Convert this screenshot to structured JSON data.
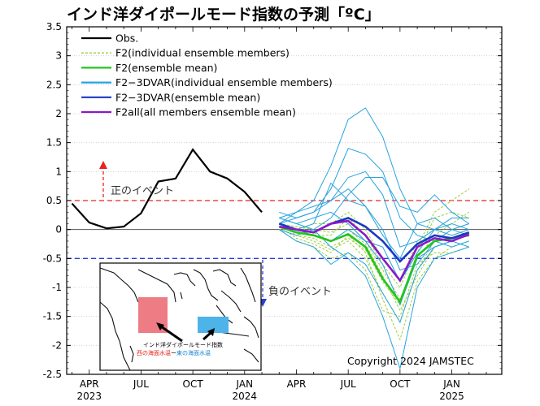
{
  "chart_data": {
    "type": "line",
    "title": "インド洋ダイポールモード指数の予測「ºC」",
    "ylim": [
      -2.5,
      3.5
    ],
    "y_ticks": [
      "3.5",
      "3",
      "2.5",
      "2",
      "1.5",
      "1",
      "0.5",
      "0",
      "-0.5",
      "-1",
      "-1.5",
      "-2",
      "-2.5"
    ],
    "x_ticks": [
      {
        "label": "APR",
        "year": "2023"
      },
      {
        "label": "JUL",
        "year": ""
      },
      {
        "label": "OCT",
        "year": ""
      },
      {
        "label": "JAN",
        "year": "2024"
      },
      {
        "label": "APR",
        "year": ""
      },
      {
        "label": "JUL",
        "year": ""
      },
      {
        "label": "OCT",
        "year": ""
      },
      {
        "label": "JAN",
        "year": "2025"
      }
    ],
    "thresholds": [
      {
        "value": 0.5,
        "label": "正のイベント",
        "color": "#e8241c"
      },
      {
        "value": -0.5,
        "label": "負のイベント",
        "color": "#2a3fd4"
      }
    ],
    "legend": [
      {
        "name": "Obs.",
        "color": "#000000",
        "style": "solid"
      },
      {
        "name": "F2(individual ensemble members)",
        "color": "#9ccf3c",
        "style": "dashed"
      },
      {
        "name": "F2(ensemble mean)",
        "color": "#22c41c",
        "style": "solid"
      },
      {
        "name": "F2−3DVAR(individual ensemble members)",
        "color": "#27a4de",
        "style": "solid"
      },
      {
        "name": "F2−3DVAR(ensemble mean)",
        "color": "#1b39c4",
        "style": "solid"
      },
      {
        "name": "F2all(all members ensemble mean)",
        "color": "#8a18c9",
        "style": "solid"
      }
    ],
    "series": [
      {
        "name": "Obs.",
        "x": [
          "2023-03",
          "2023-04",
          "2023-05",
          "2023-06",
          "2023-07",
          "2023-08",
          "2023-09",
          "2023-10",
          "2023-11",
          "2023-12",
          "2024-01",
          "2024-02"
        ],
        "values": [
          0.45,
          0.12,
          0.02,
          0.05,
          0.28,
          0.83,
          0.88,
          1.38,
          1.0,
          0.88,
          0.65,
          0.3
        ]
      },
      {
        "name": "F2(ensemble mean)",
        "x": [
          "2024-03",
          "2024-04",
          "2024-05",
          "2024-06",
          "2024-07",
          "2024-08",
          "2024-09",
          "2024-10",
          "2024-11",
          "2024-12",
          "2025-01",
          "2025-02"
        ],
        "values": [
          0.05,
          -0.05,
          -0.1,
          -0.2,
          -0.08,
          -0.3,
          -0.85,
          -1.25,
          -0.45,
          -0.2,
          -0.15,
          -0.1
        ]
      },
      {
        "name": "F2−3DVAR(ensemble mean)",
        "x": [
          "2024-03",
          "2024-04",
          "2024-05",
          "2024-06",
          "2024-07",
          "2024-08",
          "2024-09",
          "2024-10",
          "2024-11",
          "2024-12",
          "2025-01",
          "2025-02"
        ],
        "values": [
          0.1,
          0.0,
          -0.05,
          0.1,
          0.2,
          0.05,
          -0.2,
          -0.55,
          -0.25,
          -0.1,
          -0.15,
          -0.05
        ]
      },
      {
        "name": "F2all(all members ensemble mean)",
        "x": [
          "2024-03",
          "2024-04",
          "2024-05",
          "2024-06",
          "2024-07",
          "2024-08",
          "2024-09",
          "2024-10",
          "2024-11",
          "2024-12",
          "2025-01",
          "2025-02"
        ],
        "values": [
          0.05,
          0.0,
          -0.05,
          0.1,
          0.15,
          -0.1,
          -0.5,
          -0.88,
          -0.3,
          -0.15,
          -0.2,
          -0.08
        ]
      }
    ],
    "ensemble_members": {
      "F2": [
        [
          0.0,
          -0.1,
          -0.2,
          -0.35,
          -0.2,
          -0.5,
          -1.1,
          -1.6,
          -0.7,
          -0.2,
          0.0,
          0.1
        ],
        [
          0.1,
          0.0,
          -0.1,
          -0.1,
          0.2,
          -0.1,
          -0.6,
          -1.0,
          -0.3,
          0.3,
          0.5,
          0.7
        ],
        [
          0.05,
          -0.15,
          -0.25,
          -0.4,
          -0.1,
          -0.4,
          -1.2,
          -1.9,
          -0.9,
          -0.5,
          -0.3,
          -0.2
        ],
        [
          0.1,
          0.05,
          0.0,
          -0.05,
          0.1,
          -0.2,
          -0.7,
          -1.2,
          -0.5,
          -0.1,
          0.1,
          0.3
        ],
        [
          0.0,
          -0.2,
          -0.3,
          -0.5,
          -0.4,
          -0.7,
          -1.4,
          -1.5,
          -0.6,
          -0.4,
          -0.4,
          -0.3
        ],
        [
          0.05,
          0.0,
          0.1,
          0.1,
          0.3,
          0.0,
          -0.5,
          -0.9,
          -0.2,
          0.0,
          -0.1,
          0.0
        ],
        [
          0.1,
          -0.1,
          -0.15,
          -0.3,
          -0.15,
          -0.35,
          -0.9,
          -1.3,
          -0.4,
          0.2,
          0.3,
          0.2
        ],
        [
          0.0,
          0.05,
          -0.05,
          -0.2,
          0.0,
          -0.25,
          -0.8,
          -1.4,
          -0.8,
          -0.3,
          -0.2,
          -0.1
        ]
      ],
      "F2-3DVAR": [
        [
          0.2,
          0.3,
          0.5,
          1.1,
          1.9,
          2.1,
          1.6,
          0.7,
          0.1,
          0.0,
          -0.1,
          0.0
        ],
        [
          0.1,
          0.2,
          0.3,
          0.7,
          1.4,
          1.3,
          1.0,
          0.2,
          -0.1,
          -0.2,
          0.0,
          0.1
        ],
        [
          0.0,
          -0.1,
          0.0,
          0.2,
          0.6,
          0.9,
          0.9,
          0.4,
          0.3,
          0.6,
          0.3,
          0.1
        ],
        [
          0.1,
          0.0,
          -0.1,
          -0.2,
          0.0,
          -0.2,
          -0.6,
          -1.3,
          -0.5,
          -0.3,
          -0.2,
          -0.1
        ],
        [
          0.2,
          0.1,
          0.0,
          -0.3,
          -0.5,
          -0.8,
          -1.5,
          -2.4,
          -1.0,
          -0.5,
          -0.4,
          -0.3
        ],
        [
          0.3,
          0.2,
          0.3,
          0.5,
          0.9,
          1.0,
          0.6,
          -0.3,
          -0.2,
          0.0,
          0.2,
          0.2
        ],
        [
          0.1,
          0.3,
          0.4,
          0.5,
          0.7,
          0.4,
          0.0,
          -0.7,
          -0.6,
          -0.2,
          -0.3,
          -0.2
        ],
        [
          0.0,
          -0.2,
          -0.3,
          -0.6,
          -0.4,
          -0.6,
          -1.1,
          -1.6,
          -0.7,
          -0.3,
          -0.2,
          -0.3
        ],
        [
          0.2,
          0.1,
          0.2,
          0.3,
          0.1,
          -0.2,
          -0.3,
          -0.9,
          -0.4,
          0.0,
          0.1,
          0.0
        ],
        [
          0.1,
          0.0,
          0.1,
          0.8,
          0.5,
          0.4,
          -0.1,
          -0.5,
          0.1,
          0.2,
          0.0,
          -0.1
        ]
      ]
    },
    "inset_map": {
      "title": "インド洋ダイポールモード指数",
      "left_label": "西の海面水温",
      "connector": "ー",
      "right_label": "東の海面水温",
      "left_color": "#ee7c84",
      "right_color": "#4db3e8"
    },
    "copyright": "Copyright 2024 JAMSTEC"
  }
}
